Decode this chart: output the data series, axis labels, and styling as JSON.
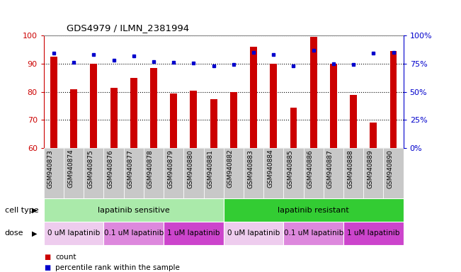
{
  "title": "GDS4979 / ILMN_2381994",
  "samples": [
    "GSM940873",
    "GSM940874",
    "GSM940875",
    "GSM940876",
    "GSM940877",
    "GSM940878",
    "GSM940879",
    "GSM940880",
    "GSM940881",
    "GSM940882",
    "GSM940883",
    "GSM940884",
    "GSM940885",
    "GSM940886",
    "GSM940887",
    "GSM940888",
    "GSM940889",
    "GSM940890"
  ],
  "count_values": [
    92.5,
    81.0,
    90.0,
    81.5,
    85.0,
    88.5,
    79.5,
    80.5,
    77.5,
    80.0,
    96.0,
    90.0,
    74.5,
    99.5,
    90.0,
    79.0,
    69.0,
    94.5
  ],
  "percentile_values": [
    84,
    76,
    83,
    78,
    82,
    77,
    76,
    75.5,
    73,
    74.5,
    85,
    83,
    73,
    87,
    75,
    74,
    84,
    85
  ],
  "ylim_left": [
    60,
    100
  ],
  "ylim_right": [
    0,
    100
  ],
  "yticks_left": [
    60,
    70,
    80,
    90,
    100
  ],
  "yticks_right": [
    0,
    25,
    50,
    75,
    100
  ],
  "ytick_right_labels": [
    "0%",
    "25%",
    "50%",
    "75%",
    "100%"
  ],
  "bar_color": "#cc0000",
  "marker_color": "#0000cc",
  "bar_width": 0.35,
  "cell_type_groups": [
    {
      "label": "lapatinib sensitive",
      "start": 0,
      "end": 9,
      "color": "#aaeaaa"
    },
    {
      "label": "lapatinib resistant",
      "start": 9,
      "end": 18,
      "color": "#33cc33"
    }
  ],
  "dose_groups": [
    {
      "label": "0 uM lapatinib",
      "start": 0,
      "end": 3,
      "color": "#eeccee"
    },
    {
      "label": "0.1 uM lapatinib",
      "start": 3,
      "end": 6,
      "color": "#dd88dd"
    },
    {
      "label": "1 uM lapatinib",
      "start": 6,
      "end": 9,
      "color": "#cc44cc"
    },
    {
      "label": "0 uM lapatinib",
      "start": 9,
      "end": 12,
      "color": "#eeccee"
    },
    {
      "label": "0.1 uM lapatinib",
      "start": 12,
      "end": 15,
      "color": "#dd88dd"
    },
    {
      "label": "1 uM lapatinib",
      "start": 15,
      "end": 18,
      "color": "#cc44cc"
    }
  ],
  "legend_items": [
    {
      "label": "count",
      "color": "#cc0000"
    },
    {
      "label": "percentile rank within the sample",
      "color": "#0000cc"
    }
  ],
  "cell_type_row_label": "cell type",
  "dose_row_label": "dose",
  "axis_left_color": "#cc0000",
  "axis_right_color": "#0000cc",
  "bg_color": "#ffffff",
  "xtick_bg_color": "#c8c8c8"
}
